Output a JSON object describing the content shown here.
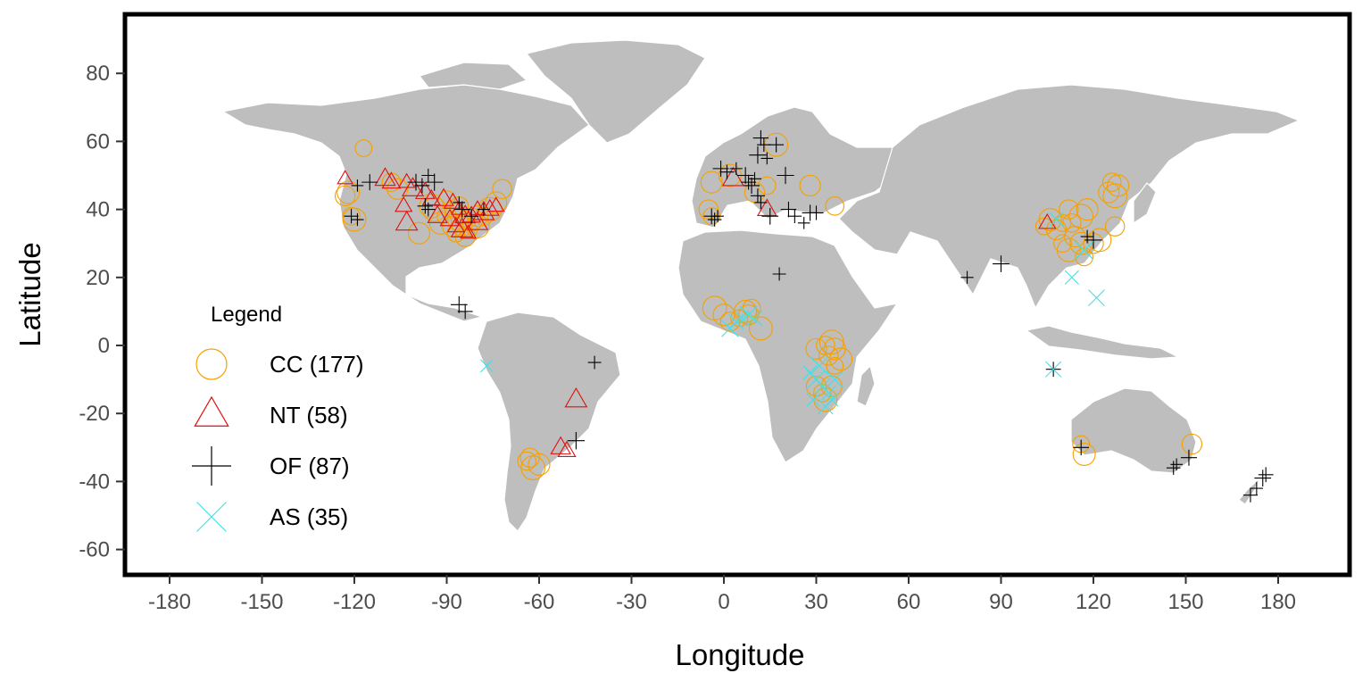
{
  "chart_data": {
    "type": "scatter",
    "title": "",
    "xlabel": "Longitude",
    "ylabel": "Latitude",
    "xlim": [
      -200,
      210
    ],
    "ylim": [
      -68,
      98
    ],
    "x_ticks": [
      -180,
      -150,
      -120,
      -90,
      -60,
      -30,
      0,
      30,
      60,
      90,
      120,
      150,
      180
    ],
    "y_ticks": [
      -60,
      -40,
      -20,
      0,
      20,
      40,
      60,
      80
    ],
    "x_tick_labels": [
      "-180",
      "-150",
      "-120",
      "-90",
      "-60",
      "-30",
      "0",
      "30",
      "60",
      "90",
      "120",
      "150",
      "180"
    ],
    "y_tick_labels": [
      "-60",
      "-40",
      "-20",
      "0",
      "20",
      "40",
      "60",
      "80"
    ],
    "grid": false,
    "background": "world map (land grey, country borders white)",
    "legend": {
      "title": "Legend",
      "placement": "left",
      "entries": [
        {
          "key": "CC",
          "label": "CC (177)",
          "marker": "circle",
          "color": "#f5a000"
        },
        {
          "key": "NT",
          "label": "NT (58)",
          "marker": "triangle",
          "color": "#e01010"
        },
        {
          "key": "OF",
          "label": "OF (87)",
          "marker": "plus",
          "color": "#000000"
        },
        {
          "key": "AS",
          "label": "AS (35)",
          "marker": "cross",
          "color": "#40e0e8"
        }
      ]
    },
    "series": [
      {
        "name": "CC (177)",
        "marker": "circle",
        "color": "#f5a000",
        "points": [
          [
            -117,
            58
          ],
          [
            -122,
            45
          ],
          [
            -123,
            44
          ],
          [
            -121,
            38
          ],
          [
            -120,
            37
          ],
          [
            -106,
            46
          ],
          [
            -108,
            48
          ],
          [
            -95,
            41
          ],
          [
            -99,
            33
          ],
          [
            -90,
            38
          ],
          [
            -88,
            40
          ],
          [
            -86,
            37
          ],
          [
            -85,
            35
          ],
          [
            -83,
            34
          ],
          [
            -82,
            37
          ],
          [
            -80,
            38
          ],
          [
            -78,
            38
          ],
          [
            -76,
            40
          ],
          [
            -74,
            42
          ],
          [
            -72,
            46
          ],
          [
            -90,
            43
          ],
          [
            -92,
            36
          ],
          [
            -84,
            32
          ],
          [
            -87,
            33
          ],
          [
            -80,
            35
          ],
          [
            -88,
            35
          ],
          [
            -86,
            41
          ],
          [
            -94,
            40
          ],
          [
            -4,
            48
          ],
          [
            -5,
            40
          ],
          [
            -4,
            38
          ],
          [
            2,
            50
          ],
          [
            10,
            45
          ],
          [
            14,
            47
          ],
          [
            17,
            59
          ],
          [
            28,
            47
          ],
          [
            36,
            41
          ],
          [
            -3,
            11
          ],
          [
            0,
            9
          ],
          [
            2,
            7
          ],
          [
            5,
            8
          ],
          [
            7,
            10
          ],
          [
            8,
            9
          ],
          [
            9,
            11
          ],
          [
            12,
            5
          ],
          [
            30,
            -1
          ],
          [
            33,
            0
          ],
          [
            35,
            1
          ],
          [
            36,
            -1
          ],
          [
            34,
            -3
          ],
          [
            36,
            -6
          ],
          [
            38,
            -4
          ],
          [
            30,
            -12
          ],
          [
            32,
            -14
          ],
          [
            33,
            -16
          ],
          [
            35,
            -12
          ],
          [
            -64,
            -34
          ],
          [
            -62,
            -36
          ],
          [
            -60,
            -35
          ],
          [
            -63,
            -33
          ],
          [
            104,
            35
          ],
          [
            106,
            37
          ],
          [
            108,
            34
          ],
          [
            110,
            30
          ],
          [
            112,
            28
          ],
          [
            114,
            32
          ],
          [
            113,
            36
          ],
          [
            116,
            38
          ],
          [
            118,
            40
          ],
          [
            112,
            40
          ],
          [
            110,
            36
          ],
          [
            116,
            30
          ],
          [
            120,
            30
          ],
          [
            117,
            26
          ],
          [
            122,
            31
          ],
          [
            125,
            45
          ],
          [
            126,
            48
          ],
          [
            127,
            44
          ],
          [
            128,
            47
          ],
          [
            127,
            35
          ],
          [
            116,
            -29
          ],
          [
            117,
            -32
          ],
          [
            152,
            -29
          ]
        ]
      },
      {
        "name": "NT (58)",
        "marker": "triangle",
        "color": "#e01010",
        "points": [
          [
            -123,
            49
          ],
          [
            -110,
            49
          ],
          [
            -108,
            48
          ],
          [
            -103,
            48
          ],
          [
            -101,
            46
          ],
          [
            -97,
            45
          ],
          [
            -104,
            41
          ],
          [
            -103,
            36
          ],
          [
            -91,
            43
          ],
          [
            -88,
            42
          ],
          [
            -86,
            40
          ],
          [
            -84,
            38
          ],
          [
            -82,
            38
          ],
          [
            -80,
            40
          ],
          [
            -78,
            39
          ],
          [
            -89,
            37
          ],
          [
            -87,
            35
          ],
          [
            -85,
            34
          ],
          [
            -93,
            38
          ],
          [
            -95,
            43
          ],
          [
            -83,
            33
          ],
          [
            -80,
            36
          ],
          [
            -76,
            40
          ],
          [
            -74,
            41
          ],
          [
            3,
            49
          ],
          [
            14,
            40
          ],
          [
            105,
            36
          ],
          [
            -48,
            -16
          ],
          [
            -53,
            -30
          ],
          [
            -51,
            -31
          ]
        ]
      },
      {
        "name": "OF (87)",
        "marker": "plus",
        "color": "#000000",
        "points": [
          [
            -119,
            47
          ],
          [
            -115,
            48
          ],
          [
            -121,
            38
          ],
          [
            -119,
            37
          ],
          [
            -100,
            48
          ],
          [
            -98,
            47
          ],
          [
            -96,
            50
          ],
          [
            -94,
            48
          ],
          [
            -97,
            41
          ],
          [
            -96,
            40
          ],
          [
            -86,
            42
          ],
          [
            -85,
            40
          ],
          [
            -82,
            38
          ],
          [
            -78,
            40
          ],
          [
            -86,
            12
          ],
          [
            -84,
            10
          ],
          [
            -42,
            -5
          ],
          [
            -48,
            -28
          ],
          [
            -4,
            38
          ],
          [
            -3,
            37
          ],
          [
            -2,
            38
          ],
          [
            -1,
            52
          ],
          [
            1,
            51
          ],
          [
            4,
            52
          ],
          [
            7,
            50
          ],
          [
            8,
            48
          ],
          [
            10,
            49
          ],
          [
            11,
            56
          ],
          [
            12,
            61
          ],
          [
            13,
            59
          ],
          [
            14,
            55
          ],
          [
            9,
            47
          ],
          [
            11,
            44
          ],
          [
            12,
            42
          ],
          [
            15,
            38
          ],
          [
            17,
            59
          ],
          [
            18,
            21
          ],
          [
            20,
            50
          ],
          [
            21,
            40
          ],
          [
            23,
            38
          ],
          [
            26,
            36
          ],
          [
            28,
            39
          ],
          [
            30,
            39
          ],
          [
            79,
            20
          ],
          [
            90,
            24
          ],
          [
            107,
            -7
          ],
          [
            118,
            32
          ],
          [
            120,
            31
          ],
          [
            116,
            -30
          ],
          [
            146,
            -36
          ],
          [
            147,
            -35
          ],
          [
            151,
            -33
          ],
          [
            171,
            -44
          ],
          [
            173,
            -42
          ],
          [
            175,
            -39
          ],
          [
            176,
            -38
          ]
        ]
      },
      {
        "name": "AS (35)",
        "marker": "cross",
        "color": "#40e0e8",
        "points": [
          [
            -77,
            -6
          ],
          [
            2,
            5
          ],
          [
            4,
            7
          ],
          [
            6,
            8
          ],
          [
            8,
            9
          ],
          [
            10,
            8
          ],
          [
            28,
            -8
          ],
          [
            30,
            -10
          ],
          [
            32,
            -12
          ],
          [
            34,
            -14
          ],
          [
            35,
            -16
          ],
          [
            36,
            -10
          ],
          [
            33,
            -18
          ],
          [
            29,
            -16
          ],
          [
            31,
            -6
          ],
          [
            107,
            -7
          ],
          [
            113,
            20
          ],
          [
            117,
            28
          ],
          [
            121,
            14
          ],
          [
            108,
            37
          ]
        ]
      }
    ]
  }
}
